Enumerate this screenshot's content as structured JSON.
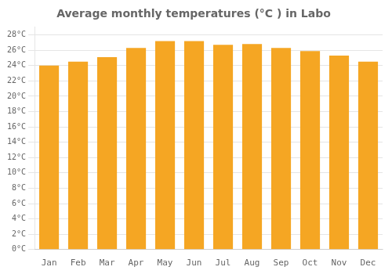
{
  "chart_data": {
    "type": "bar",
    "title": "Average monthly temperatures (°C ) in Labo",
    "categories": [
      "Jan",
      "Feb",
      "Mar",
      "Apr",
      "May",
      "Jun",
      "Jul",
      "Aug",
      "Sep",
      "Oct",
      "Nov",
      "Dec"
    ],
    "values": [
      24.0,
      24.5,
      25.1,
      26.3,
      27.2,
      27.2,
      26.7,
      26.8,
      26.3,
      25.9,
      25.3,
      24.5
    ],
    "color": "#F5A623",
    "ylim": [
      0,
      29
    ],
    "yticks": [
      {
        "value": 0,
        "label": "0°C"
      },
      {
        "value": 2,
        "label": "2°C"
      },
      {
        "value": 4,
        "label": "4°C"
      },
      {
        "value": 6,
        "label": "6°C"
      },
      {
        "value": 8,
        "label": "8°C"
      },
      {
        "value": 10,
        "label": "10°C"
      },
      {
        "value": 12,
        "label": "12°C"
      },
      {
        "value": 14,
        "label": "14°C"
      },
      {
        "value": 16,
        "label": "16°C"
      },
      {
        "value": 18,
        "label": "18°C"
      },
      {
        "value": 20,
        "label": "20°C"
      },
      {
        "value": 22,
        "label": "22°C"
      },
      {
        "value": 24,
        "label": "24°C"
      },
      {
        "value": 26,
        "label": "26°C"
      },
      {
        "value": 28,
        "label": "28°C"
      }
    ],
    "grid": true
  }
}
